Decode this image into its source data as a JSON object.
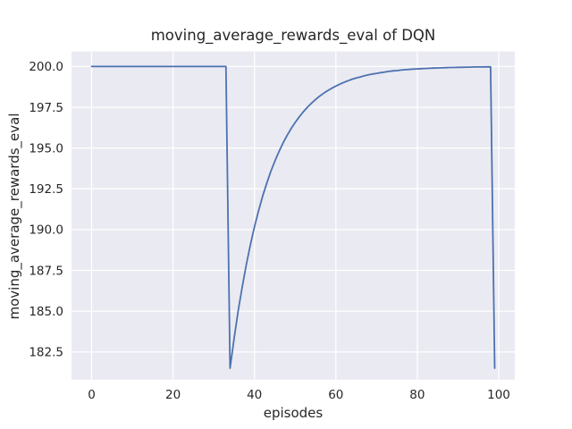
{
  "style": {
    "figure_background": "#ffffff",
    "axes_background": "#eaeaf2",
    "grid_color": "#ffffff",
    "text_color": "#262626",
    "line_color": "#4c72b0"
  },
  "chart_data": {
    "type": "line",
    "title": "moving_average_rewards_eval of DQN",
    "xlabel": "episodes",
    "ylabel": "moving_average_rewards_eval",
    "grid": true,
    "legend": false,
    "xlim": [
      -4.95,
      103.95
    ],
    "ylim": [
      180.8,
      200.92
    ],
    "xticks": {
      "values": [
        0,
        20,
        40,
        60,
        80,
        100
      ],
      "labels": [
        "0",
        "20",
        "40",
        "60",
        "80",
        "100"
      ]
    },
    "yticks": {
      "values": [
        182.5,
        185.0,
        187.5,
        190.0,
        192.5,
        195.0,
        197.5,
        200.0
      ],
      "labels": [
        "182.5",
        "185.0",
        "187.5",
        "190.0",
        "192.5",
        "195.0",
        "197.5",
        "200.0"
      ]
    },
    "series": [
      {
        "name": "moving_average_rewards_eval",
        "color": "#4c72b0",
        "x": [
          0,
          1,
          2,
          3,
          4,
          5,
          6,
          7,
          8,
          9,
          10,
          11,
          12,
          13,
          14,
          15,
          16,
          17,
          18,
          19,
          20,
          21,
          22,
          23,
          24,
          25,
          26,
          27,
          28,
          29,
          30,
          31,
          32,
          33,
          34,
          35,
          36,
          37,
          38,
          39,
          40,
          41,
          42,
          43,
          44,
          45,
          46,
          47,
          48,
          49,
          50,
          51,
          52,
          53,
          54,
          55,
          56,
          57,
          58,
          59,
          60,
          61,
          62,
          63,
          64,
          65,
          66,
          67,
          68,
          69,
          70,
          71,
          72,
          73,
          74,
          75,
          76,
          77,
          78,
          79,
          80,
          81,
          82,
          83,
          84,
          85,
          86,
          87,
          88,
          89,
          90,
          91,
          92,
          93,
          94,
          95,
          96,
          97,
          98,
          99
        ],
        "y": [
          200,
          200,
          200,
          200,
          200,
          200,
          200,
          200,
          200,
          200,
          200,
          200,
          200,
          200,
          200,
          200,
          200,
          200,
          200,
          200,
          200,
          200,
          200,
          200,
          200,
          200,
          200,
          200,
          200,
          200,
          200,
          200,
          200,
          200,
          181.5,
          183.35,
          185.02,
          186.51,
          187.86,
          189.08,
          190.17,
          191.15,
          192.04,
          192.83,
          193.55,
          194.19,
          194.78,
          195.3,
          195.77,
          196.19,
          196.57,
          196.91,
          197.22,
          197.5,
          197.75,
          197.98,
          198.18,
          198.36,
          198.52,
          198.67,
          198.8,
          198.92,
          199.03,
          199.13,
          199.22,
          199.29,
          199.36,
          199.43,
          199.49,
          199.54,
          199.58,
          199.62,
          199.66,
          199.7,
          199.73,
          199.75,
          199.78,
          199.8,
          199.82,
          199.84,
          199.85,
          199.87,
          199.88,
          199.89,
          199.9,
          199.91,
          199.92,
          199.93,
          199.94,
          199.94,
          199.95,
          199.95,
          199.96,
          199.96,
          199.97,
          199.97,
          199.97,
          199.98,
          199.98,
          181.5
        ]
      }
    ]
  }
}
